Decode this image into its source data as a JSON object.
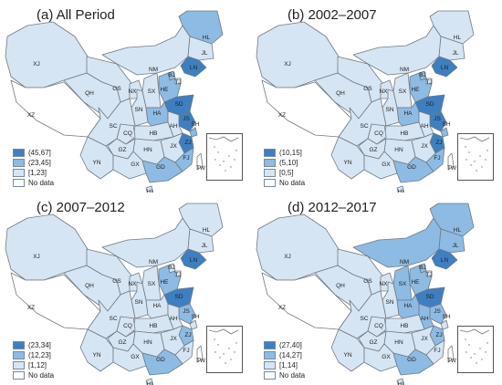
{
  "colors": {
    "high": "#3e7fc1",
    "mid": "#8dbbe3",
    "low": "#d6e5f4",
    "none": "#ffffff",
    "border": "#707a84"
  },
  "label_text": {
    "XJ": "XJ",
    "XZ": "XZ",
    "QH": "QH",
    "GS": "GS",
    "NM": "NM",
    "NX": "NX",
    "SN": "SN",
    "SX": "SX",
    "HE": "HE",
    "BJ": "BJ",
    "TJ": "TJ",
    "SD": "SD",
    "LN": "LN",
    "JL": "JL",
    "HL": "HL",
    "SC": "SC",
    "CQ": "CQ",
    "HB": "HB",
    "HA": "HA",
    "AH": "AH",
    "JS": "JS",
    "SH": "SH",
    "ZJ": "ZJ",
    "JX": "JX",
    "FJ": "FJ",
    "HN": "HN",
    "GZ": "GZ",
    "YN": "YN",
    "GX": "GX",
    "GD": "GD",
    "TW": "TW",
    "HI": "HI"
  },
  "panels": [
    {
      "title": "(a) All Period",
      "legend": [
        "(45,67]",
        "(23,45]",
        "[1,23]",
        "No data"
      ],
      "levels": {
        "XJ": "low",
        "XZ": "none",
        "QH": "low",
        "GS": "low",
        "NM": "low",
        "NX": "low",
        "SN": "low",
        "SX": "low",
        "HE": "mid",
        "BJ": "mid",
        "TJ": "low",
        "SD": "high",
        "LN": "high",
        "JL": "low",
        "HL": "mid",
        "SC": "low",
        "CQ": "low",
        "HB": "low",
        "HA": "mid",
        "AH": "low",
        "JS": "high",
        "SH": "mid",
        "ZJ": "high",
        "JX": "low",
        "FJ": "mid",
        "HN": "low",
        "GZ": "low",
        "YN": "low",
        "GX": "low",
        "GD": "mid",
        "TW": "none",
        "HI": "low"
      }
    },
    {
      "title": "(b) 2002–2007",
      "legend": [
        "(10,15]",
        "(5,10]",
        "[0,5]",
        "No data"
      ],
      "levels": {
        "XJ": "low",
        "XZ": "none",
        "QH": "low",
        "GS": "low",
        "NM": "low",
        "NX": "low",
        "SN": "low",
        "SX": "low",
        "HE": "mid",
        "BJ": "mid",
        "TJ": "low",
        "SD": "high",
        "LN": "high",
        "JL": "low",
        "HL": "low",
        "SC": "low",
        "CQ": "low",
        "HB": "low",
        "HA": "mid",
        "AH": "low",
        "JS": "high",
        "SH": "mid",
        "ZJ": "high",
        "JX": "low",
        "FJ": "mid",
        "HN": "low",
        "GZ": "low",
        "YN": "low",
        "GX": "low",
        "GD": "mid",
        "TW": "none",
        "HI": "low"
      }
    },
    {
      "title": "(c) 2007–2012",
      "legend": [
        "(23,34]",
        "(12,23]",
        "[1,12]",
        "No data"
      ],
      "levels": {
        "XJ": "low",
        "XZ": "none",
        "QH": "low",
        "GS": "low",
        "NM": "low",
        "NX": "low",
        "SN": "low",
        "SX": "low",
        "HE": "mid",
        "BJ": "low",
        "TJ": "low",
        "SD": "high",
        "LN": "high",
        "JL": "low",
        "HL": "low",
        "SC": "low",
        "CQ": "low",
        "HB": "low",
        "HA": "low",
        "AH": "low",
        "JS": "mid",
        "SH": "low",
        "ZJ": "mid",
        "JX": "low",
        "FJ": "low",
        "HN": "low",
        "GZ": "low",
        "YN": "low",
        "GX": "low",
        "GD": "mid",
        "TW": "none",
        "HI": "low"
      }
    },
    {
      "title": "(d) 2012–2017",
      "legend": [
        "(27,40]",
        "(14,27]",
        "[1,14]",
        "No data"
      ],
      "levels": {
        "XJ": "low",
        "XZ": "none",
        "QH": "low",
        "GS": "low",
        "NM": "mid",
        "NX": "low",
        "SN": "low",
        "SX": "mid",
        "HE": "mid",
        "BJ": "mid",
        "TJ": "low",
        "SD": "high",
        "LN": "high",
        "JL": "mid",
        "HL": "mid",
        "SC": "low",
        "CQ": "low",
        "HB": "low",
        "HA": "mid",
        "AH": "mid",
        "JS": "mid",
        "SH": "low",
        "ZJ": "mid",
        "JX": "low",
        "FJ": "low",
        "HN": "low",
        "GZ": "low",
        "YN": "low",
        "GX": "low",
        "GD": "mid",
        "TW": "none",
        "HI": "low"
      }
    }
  ]
}
